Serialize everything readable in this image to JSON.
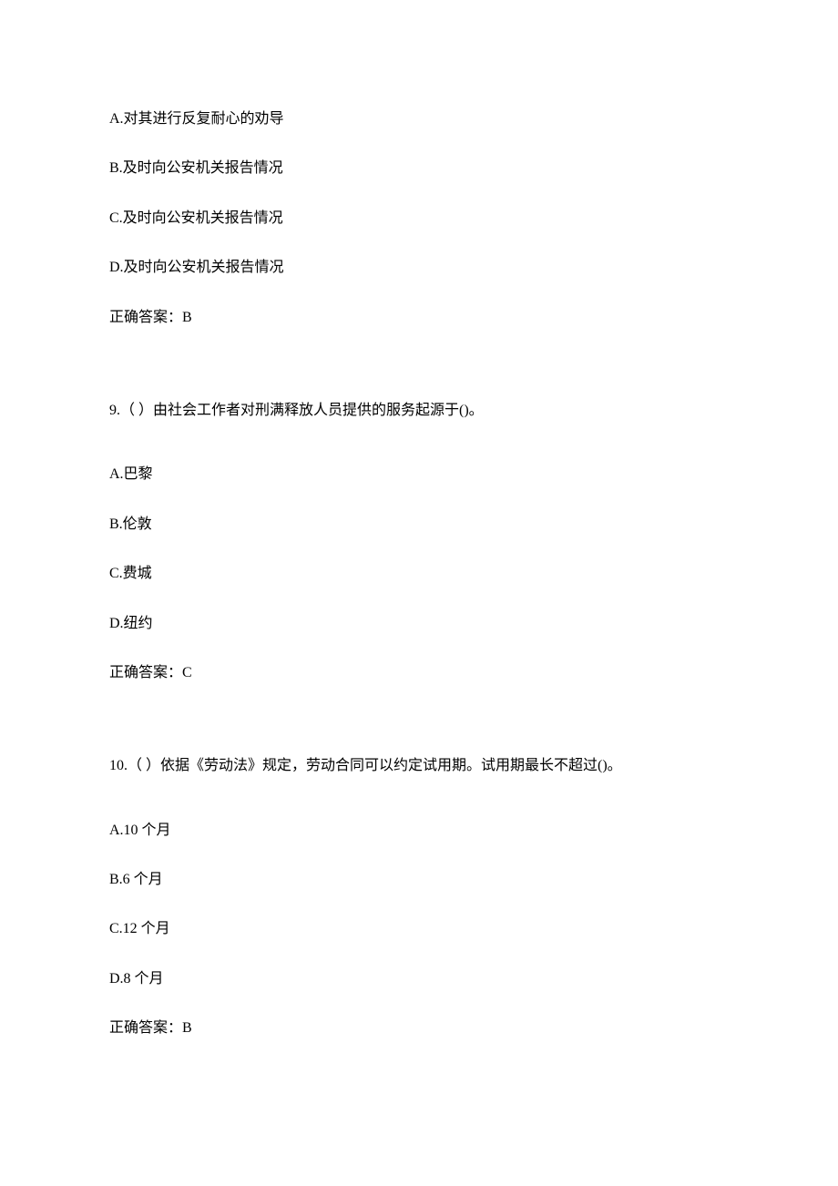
{
  "q8": {
    "options": {
      "a": "A.对其进行反复耐心的劝导",
      "b": "B.及时向公安机关报告情况",
      "c": "C.及时向公安机关报告情况",
      "d": "D.及时向公安机关报告情况"
    },
    "answer": "正确答案：B"
  },
  "q9": {
    "question": "9.（ ）由社会工作者对刑满释放人员提供的服务起源于()。",
    "options": {
      "a": "A.巴黎",
      "b": "B.伦敦",
      "c": "C.费城",
      "d": "D.纽约"
    },
    "answer": "正确答案：C"
  },
  "q10": {
    "question": "10.（ ）依据《劳动法》规定，劳动合同可以约定试用期。试用期最长不超过()。",
    "options": {
      "a": "A.10 个月",
      "b": "B.6 个月",
      "c": "C.12 个月",
      "d": "D.8 个月"
    },
    "answer": "正确答案：B"
  }
}
